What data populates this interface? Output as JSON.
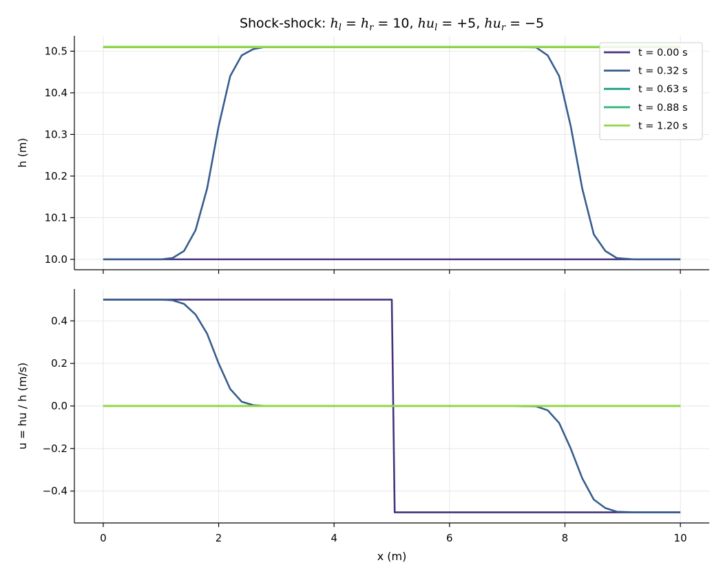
{
  "chart_data": [
    {
      "type": "line",
      "title_parts": {
        "prefix": "Shock-shock: ",
        "hl": "h",
        "l_sub": "l",
        "eq": " = ",
        "hr": "h",
        "r_sub": "r",
        "val1": " = 10, ",
        "hu1": "hu",
        "l_sub2": "l",
        "val2": " = +5, ",
        "hu2": "hu",
        "r_sub2": "r",
        "val3": " = −5"
      },
      "ylabel": "h (m)",
      "xlabel": "",
      "xlim": [
        -0.5,
        10.5
      ],
      "ylim": [
        9.975,
        10.537
      ],
      "xticks": [
        0,
        2,
        4,
        6,
        8,
        10
      ],
      "yticks": [
        10.0,
        10.1,
        10.2,
        10.3,
        10.4,
        10.5
      ],
      "ytick_labels": [
        "10.0",
        "10.1",
        "10.2",
        "10.3",
        "10.4",
        "10.5"
      ],
      "grid": true,
      "legend_position": "top-right",
      "series": [
        {
          "name": "t = 0.00 s",
          "color": "#46327e",
          "x": [
            0,
            10
          ],
          "y": [
            10.0,
            10.0
          ]
        },
        {
          "name": "t = 0.32 s",
          "color": "#365c8d",
          "x": [
            0,
            1.0,
            1.2,
            1.4,
            1.6,
            1.8,
            2.0,
            2.2,
            2.4,
            2.6,
            2.8,
            3.0,
            3.5,
            7.0,
            7.5,
            7.7,
            7.9,
            8.1,
            8.3,
            8.5,
            8.7,
            8.9,
            9.2,
            10
          ],
          "y": [
            10.0,
            10.0,
            10.003,
            10.02,
            10.07,
            10.17,
            10.32,
            10.44,
            10.49,
            10.505,
            10.51,
            10.51,
            10.51,
            10.51,
            10.509,
            10.49,
            10.44,
            10.32,
            10.17,
            10.06,
            10.02,
            10.003,
            10.0,
            10.0
          ]
        },
        {
          "name": "t = 0.63 s",
          "color": "#1f9e89",
          "x": [
            0,
            10
          ],
          "y": [
            10.51,
            10.51
          ]
        },
        {
          "name": "t = 0.88 s",
          "color": "#35b779",
          "x": [
            0,
            10
          ],
          "y": [
            10.51,
            10.51
          ]
        },
        {
          "name": "t = 1.20 s",
          "color": "#90d743",
          "x": [
            0,
            10
          ],
          "y": [
            10.51,
            10.51
          ]
        }
      ]
    },
    {
      "type": "line",
      "ylabel": "u = hu / h (m/s)",
      "xlabel": "x (m)",
      "xlim": [
        -0.5,
        10.5
      ],
      "ylim": [
        -0.55,
        0.55
      ],
      "xticks": [
        0,
        2,
        4,
        6,
        8,
        10
      ],
      "xtick_labels": [
        "0",
        "2",
        "4",
        "6",
        "8",
        "10"
      ],
      "yticks": [
        0.4,
        0.2,
        0.0,
        -0.2,
        -0.4
      ],
      "ytick_labels": [
        "0.4",
        "0.2",
        "0.0",
        "−0.2",
        "−0.4"
      ],
      "grid": true,
      "series": [
        {
          "name": "t = 0.00 s",
          "color": "#46327e",
          "x": [
            0,
            5.0,
            5.05,
            10
          ],
          "y": [
            0.5,
            0.5,
            -0.5,
            -0.5
          ]
        },
        {
          "name": "t = 0.32 s",
          "color": "#365c8d",
          "x": [
            0,
            1.0,
            1.2,
            1.4,
            1.6,
            1.8,
            2.0,
            2.2,
            2.4,
            2.6,
            2.8,
            3.0,
            7.0,
            7.5,
            7.7,
            7.9,
            8.1,
            8.3,
            8.5,
            8.7,
            8.9,
            9.2,
            10
          ],
          "y": [
            0.5,
            0.5,
            0.497,
            0.48,
            0.43,
            0.34,
            0.2,
            0.08,
            0.02,
            0.004,
            0.0,
            0.0,
            0.0,
            -0.002,
            -0.02,
            -0.08,
            -0.2,
            -0.34,
            -0.44,
            -0.48,
            -0.497,
            -0.5,
            -0.5
          ]
        },
        {
          "name": "t = 0.63 s",
          "color": "#1f9e89",
          "x": [
            0,
            10
          ],
          "y": [
            0.0,
            0.0
          ]
        },
        {
          "name": "t = 0.88 s",
          "color": "#35b779",
          "x": [
            0,
            10
          ],
          "y": [
            0.0,
            0.0
          ]
        },
        {
          "name": "t = 1.20 s",
          "color": "#90d743",
          "x": [
            0,
            10
          ],
          "y": [
            0.0,
            0.0
          ]
        }
      ]
    }
  ]
}
